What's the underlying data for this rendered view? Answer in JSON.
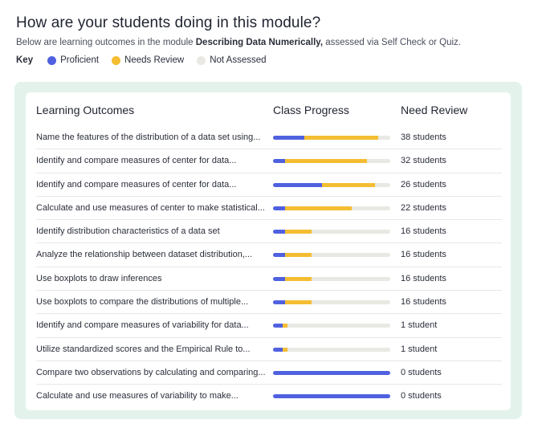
{
  "header": {
    "title": "How are your students doing in this module?",
    "subtitle_prefix": "Below are learning outcomes in the module ",
    "module_name": "Describing Data Numerically,",
    "subtitle_suffix": " assessed via Self Check or Quiz."
  },
  "key": {
    "label": "Key",
    "items": [
      {
        "label": "Proficient",
        "color": "#5061e0"
      },
      {
        "label": "Needs Review",
        "color": "#f4bd32"
      },
      {
        "label": "Not Assessed",
        "color": "#e9e8e2"
      }
    ]
  },
  "table": {
    "headers": {
      "outcomes": "Learning Outcomes",
      "progress": "Class Progress",
      "review": "Need Review"
    },
    "rows": [
      {
        "outcome": "Name the features of the distribution of a data set using...",
        "proficient": 0.27,
        "needs_review": 0.63,
        "count": "38 students"
      },
      {
        "outcome": "Identify and compare measures of center for data...",
        "proficient": 0.1,
        "needs_review": 0.7,
        "count": "32 students"
      },
      {
        "outcome": "Identify and compare measures of center for data...",
        "proficient": 0.42,
        "needs_review": 0.45,
        "count": "26 students"
      },
      {
        "outcome": "Calculate and use measures of center to make statistical...",
        "proficient": 0.1,
        "needs_review": 0.57,
        "count": "22 students"
      },
      {
        "outcome": "Identify distribution characteristics of a data set",
        "proficient": 0.1,
        "needs_review": 0.23,
        "count": "16 students"
      },
      {
        "outcome": "Analyze the relationship between dataset distribution,...",
        "proficient": 0.1,
        "needs_review": 0.23,
        "count": "16 students"
      },
      {
        "outcome": "Use boxplots to draw inferences",
        "proficient": 0.1,
        "needs_review": 0.23,
        "count": "16 students"
      },
      {
        "outcome": "Use boxplots to compare the distributions of multiple...",
        "proficient": 0.1,
        "needs_review": 0.23,
        "count": "16 students"
      },
      {
        "outcome": "Identify and compare measures of variability for data...",
        "proficient": 0.08,
        "needs_review": 0.04,
        "count": "1 student"
      },
      {
        "outcome": "Utilize standardized scores and the Empirical Rule to...",
        "proficient": 0.08,
        "needs_review": 0.04,
        "count": "1 student"
      },
      {
        "outcome": "Compare two observations by calculating and comparing...",
        "proficient": 1.0,
        "needs_review": 0.0,
        "count": "0 students"
      },
      {
        "outcome": "Calculate and use measures of variability to make...",
        "proficient": 1.0,
        "needs_review": 0.0,
        "count": "0 students"
      }
    ]
  }
}
